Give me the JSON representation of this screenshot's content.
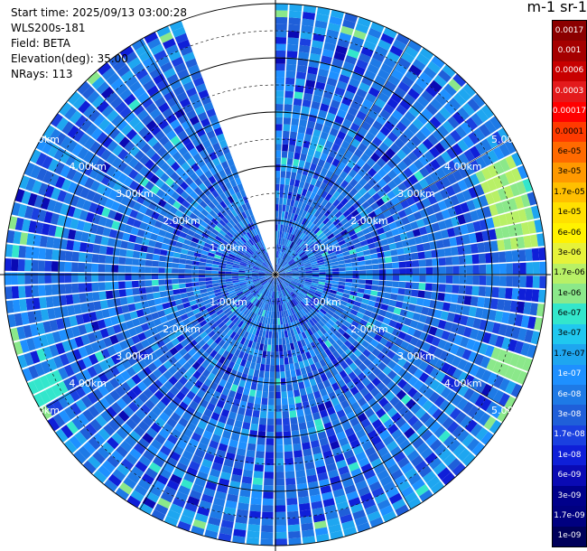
{
  "header": {
    "start_time": "Start time: 2025/09/13 03:00:28",
    "instrument": "WLS200s-181",
    "field": "Field: BETA",
    "elevation": "Elevation(deg): 35.00",
    "nrays": "NRays: 113"
  },
  "colorbar": {
    "unit_label": "m-1 sr-1",
    "labels": [
      "0.0017",
      "0.001",
      "0.0006",
      "0.0003",
      "0.00017",
      "0.0001",
      "6e-05",
      "3e-05",
      "1.7e-05",
      "1e-05",
      "6e-06",
      "3e-06",
      "1.7e-06",
      "1e-06",
      "6e-07",
      "3e-07",
      "1.7e-07",
      "1e-07",
      "6e-08",
      "3e-08",
      "1.7e-08",
      "1e-08",
      "6e-09",
      "3e-09",
      "1.7e-09",
      "1e-09"
    ],
    "colors": [
      "#8b0000",
      "#a50000",
      "#c80000",
      "#e41a1c",
      "#ff0000",
      "#ff3a00",
      "#ff6a00",
      "#ff9900",
      "#ffbf00",
      "#ffe000",
      "#fff200",
      "#e6f23a",
      "#b8f066",
      "#8be88a",
      "#33e6cc",
      "#20c8ef",
      "#1ea6f0",
      "#1e90ff",
      "#1e7ae6",
      "#1f5fd9",
      "#1a40e0",
      "#0f1fd8",
      "#0a0ab4",
      "#00008b",
      "#000080",
      "#00005a"
    ]
  },
  "chart_data": {
    "type": "heatmap",
    "subtype": "polar_ppi",
    "field": "BETA",
    "elevation_deg": 35.0,
    "n_rays": 113,
    "max_range_km": 5.0,
    "range_rings_km": [
      1,
      2,
      3,
      4,
      5
    ],
    "ring_labels": [
      "1.00km",
      "2.00km",
      "3.00km",
      "4.00km",
      "5.00km"
    ],
    "missing_sector_deg": [
      340,
      360
    ],
    "dominant_value_range": [
      "1.7e-08",
      "1e-07"
    ],
    "colorbar_labels": [
      "0.0017",
      "0.001",
      "0.0006",
      "0.0003",
      "0.00017",
      "0.0001",
      "6e-05",
      "3e-05",
      "1.7e-05",
      "1e-05",
      "6e-06",
      "3e-06",
      "1.7e-06",
      "1e-06",
      "6e-07",
      "3e-07",
      "1.7e-07",
      "1e-07",
      "6e-08",
      "3e-08",
      "1.7e-08",
      "1e-08",
      "6e-09",
      "3e-09",
      "1.7e-09",
      "1e-09"
    ],
    "grid": true
  }
}
